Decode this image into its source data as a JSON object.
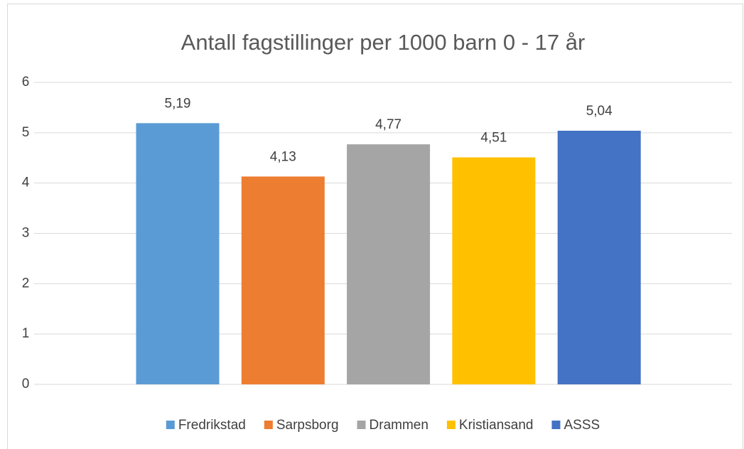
{
  "chart_data": {
    "type": "bar",
    "title": "Antall fagstillinger per 1000 barn 0 - 17 år",
    "categories": [
      "Fredrikstad",
      "Sarpsborg",
      "Drammen",
      "Kristiansand",
      "ASSS"
    ],
    "values": [
      5.19,
      4.13,
      4.77,
      4.51,
      5.04
    ],
    "value_labels": [
      "5,19",
      "4,13",
      "4,77",
      "4,51",
      "5,04"
    ],
    "colors": [
      "#5b9bd5",
      "#ed7d31",
      "#a5a5a5",
      "#ffc000",
      "#4472c4"
    ],
    "ylim": [
      0,
      6
    ],
    "yticks": [
      0,
      1,
      2,
      3,
      4,
      5,
      6
    ],
    "grid": true,
    "legend": "bottom"
  }
}
